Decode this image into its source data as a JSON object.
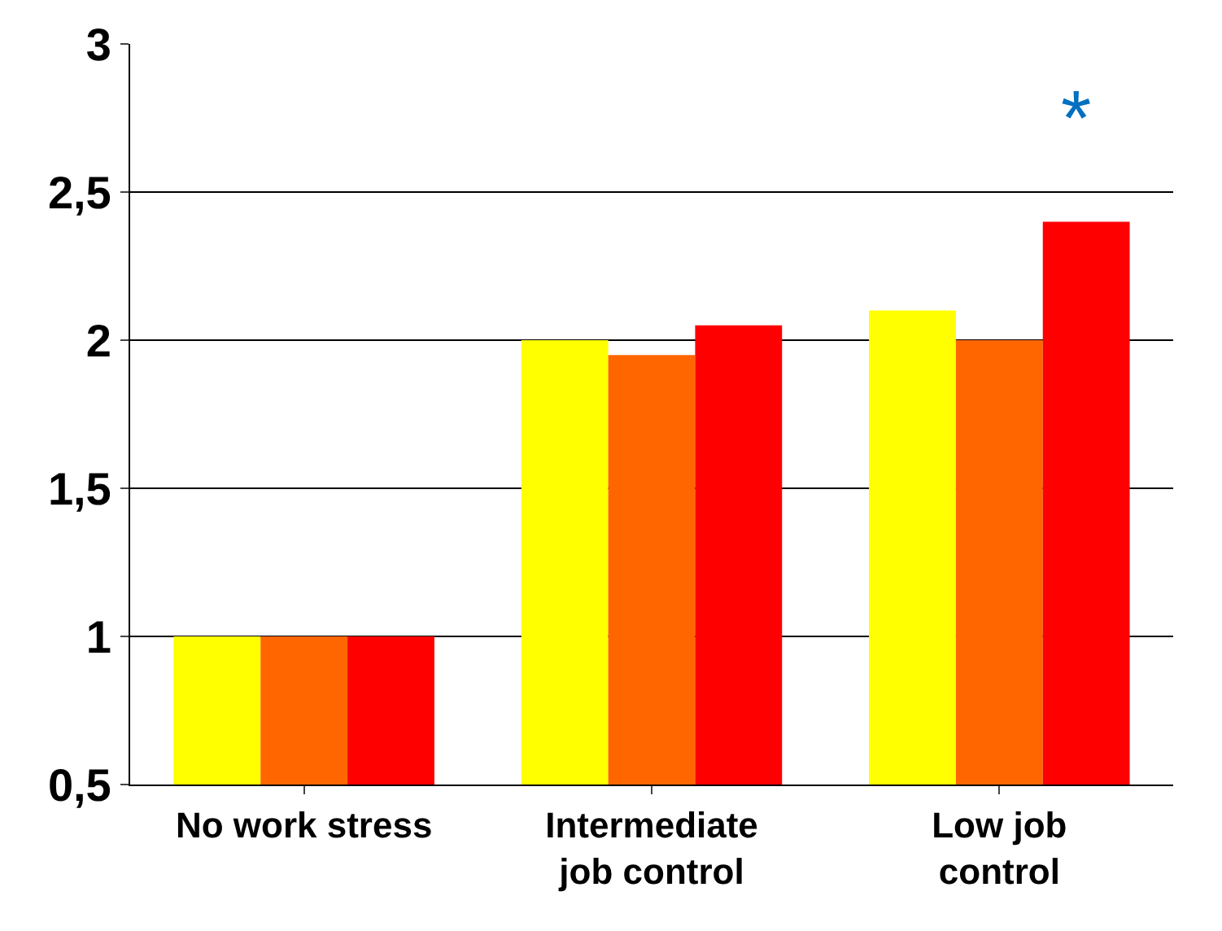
{
  "chart_data": {
    "type": "bar",
    "categories": [
      "No work stress",
      "Intermediate job control",
      "Low job control"
    ],
    "series": [
      {
        "color": "#ffff00",
        "values": [
          1,
          2,
          2.1
        ]
      },
      {
        "color": "#ff6600",
        "values": [
          1,
          1.95,
          2
        ]
      },
      {
        "color": "#ff0000",
        "values": [
          1,
          2.05,
          2.4
        ]
      }
    ],
    "ylim": [
      0.5,
      3
    ],
    "yticks": [
      {
        "value": 0.5,
        "label": "0,5"
      },
      1,
      {
        "value": 1.5,
        "label": "1,5"
      },
      2,
      {
        "value": 2.5,
        "label": "2,5"
      },
      3
    ],
    "grid": "y",
    "annotations": [
      "*"
    ]
  }
}
